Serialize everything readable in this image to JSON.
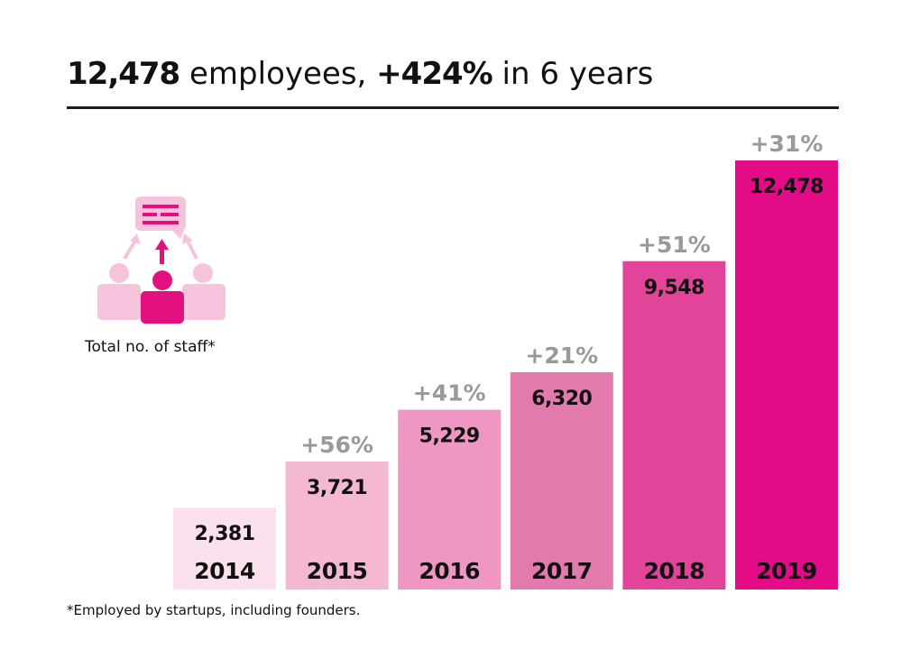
{
  "headline": {
    "total": "12,478",
    "text1": " employees, ",
    "growth": "+424%",
    "text2": " in 6 years"
  },
  "icon_caption": "Total no. of staff*",
  "footnote": "*Employed by startups, including founders.",
  "colors": {
    "bar_2014": "#fbe0ee",
    "bar_2015": "#f5b8d3",
    "bar_2016": "#ef97c2",
    "bar_2017": "#e27aad",
    "bar_2018": "#e2449a",
    "bar_2019": "#e30b86",
    "pct_label": "#999999",
    "icon_light": "#f5c4dc",
    "icon_dark": "#e3117f"
  },
  "chart_data": {
    "type": "bar",
    "title": "12,478 employees, +424% in 6 years",
    "categories": [
      "2014",
      "2015",
      "2016",
      "2017",
      "2018",
      "2019"
    ],
    "values": [
      2381,
      3721,
      5229,
      6320,
      9548,
      12478
    ],
    "value_labels": [
      "2,381",
      "3,721",
      "5,229",
      "6,320",
      "9,548",
      "12,478"
    ],
    "change_labels": [
      "",
      "+56%",
      "+41%",
      "+21%",
      "+51%",
      "+31%"
    ],
    "xlabel": "",
    "ylabel": "",
    "grid": false
  }
}
